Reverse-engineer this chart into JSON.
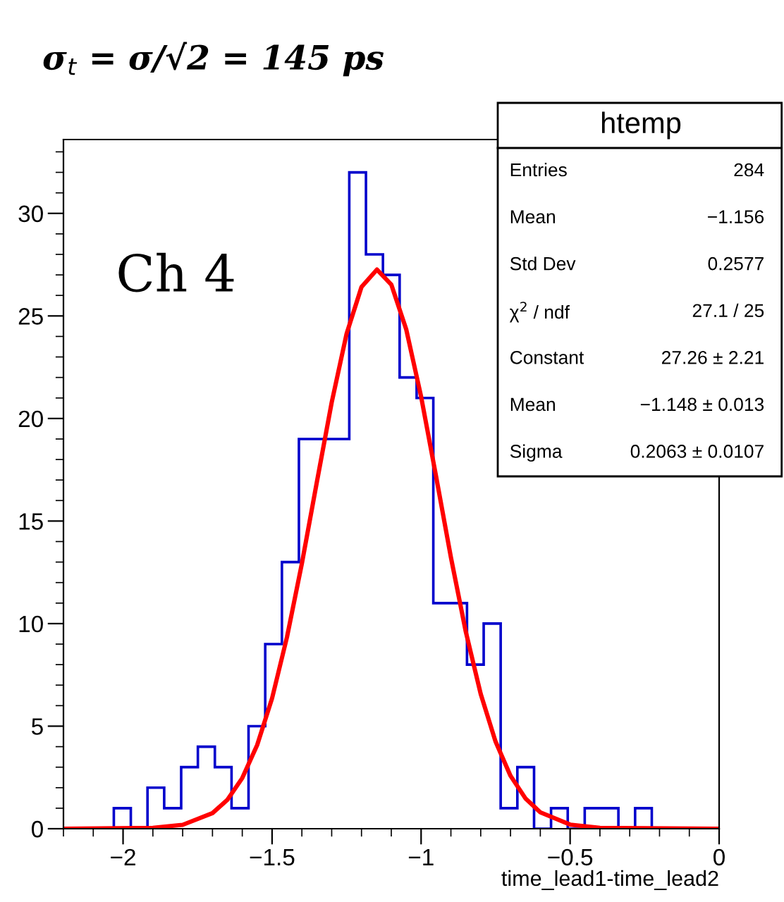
{
  "chart_data": {
    "type": "histogram",
    "title": "σ$_{t}$ = σ/√2 = 145 ps",
    "xlabel": "time_lead1-time_lead2",
    "xlim": [
      -2.2,
      0
    ],
    "xticks": [
      {
        "value": -2,
        "label": "−2"
      },
      {
        "value": -1.5,
        "label": "−1.5"
      },
      {
        "value": -1,
        "label": "−1"
      },
      {
        "value": -0.5,
        "label": "−0.5"
      },
      0
    ],
    "ylim": [
      0,
      33.6
    ],
    "yticks": [
      0,
      5,
      10,
      15,
      20,
      25,
      30
    ],
    "grid": false,
    "annotations": [
      "Ch 4",
      "htemp",
      "Entries",
      "284",
      "Mean",
      "−1.156",
      "Std Dev",
      "0.2577",
      "χ$^{2}$ / ndf",
      "27.1 / 25",
      "Constant",
      "27.26 ± 2.21",
      "Mean",
      "−1.148 ± 0.013",
      "Sigma",
      "0.2063 ± 0.0107"
    ],
    "series": [
      {
        "color": "#0000cc",
        "bins": [
          -2.2,
          -2.144,
          -2.087,
          -2.031,
          -1.974,
          -1.918,
          -1.862,
          -1.805,
          -1.749,
          -1.692,
          -1.636,
          -1.579,
          -1.523,
          -1.467,
          -1.41,
          -1.354,
          -1.297,
          -1.241,
          -1.185,
          -1.128,
          -1.072,
          -1.015,
          -0.959,
          -0.903,
          -0.846,
          -0.79,
          -0.733,
          -0.677,
          -0.621,
          -0.564,
          -0.508,
          -0.451,
          -0.395,
          -0.338,
          -0.282,
          -0.226,
          -0.169,
          -0.113,
          -0.056,
          0
        ],
        "values": [
          0,
          0,
          0,
          1,
          0,
          2,
          1,
          3,
          4,
          3,
          1,
          5,
          9,
          13,
          19,
          19,
          19,
          32,
          28,
          27,
          22,
          21,
          11,
          11,
          8,
          10,
          1,
          3,
          0,
          1,
          0,
          1,
          1,
          0,
          1,
          0,
          0,
          0,
          0
        ]
      },
      {
        "type": "line",
        "color": "#ff0000",
        "x": [
          -2.2,
          -1.9,
          -1.8,
          -1.7,
          -1.65,
          -1.6,
          -1.55,
          -1.5,
          -1.45,
          -1.4,
          -1.35,
          -1.3,
          -1.25,
          -1.2,
          -1.148,
          -1.1,
          -1.05,
          -1.0,
          -0.95,
          -0.9,
          -0.85,
          -0.8,
          -0.75,
          -0.7,
          -0.65,
          -0.6,
          -0.5,
          -0.4,
          0
        ],
        "values": [
          0,
          0.04,
          0.19,
          0.76,
          1.41,
          2.47,
          4.08,
          6.36,
          9.34,
          12.93,
          16.88,
          20.78,
          24.13,
          26.41,
          27.26,
          26.53,
          24.35,
          21.07,
          17.2,
          13.23,
          9.6,
          6.57,
          4.24,
          2.58,
          1.48,
          0.8,
          0.2,
          0.04,
          0
        ]
      }
    ]
  }
}
